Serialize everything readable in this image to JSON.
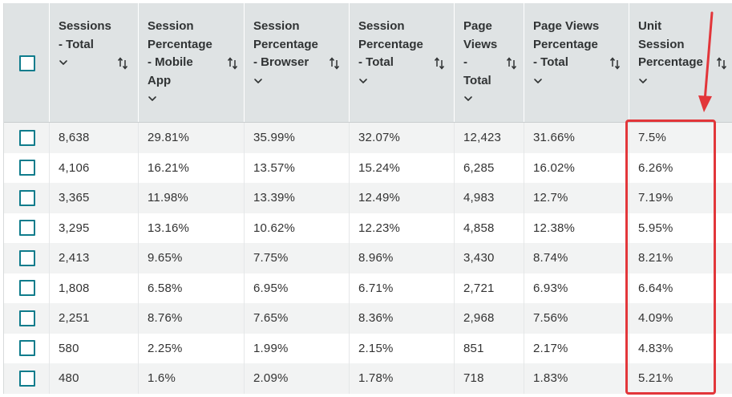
{
  "table": {
    "columns": [
      {
        "label": "",
        "type": "checkbox"
      },
      {
        "label": "Sessions\n- Total",
        "sortable": true
      },
      {
        "label": "Session\nPercentage\n- Mobile\nApp",
        "sortable": true
      },
      {
        "label": "Session\nPercentage\n- Browser",
        "sortable": true
      },
      {
        "label": "Session\nPercentage\n- Total",
        "sortable": true
      },
      {
        "label": "Page\nViews\n-\nTotal",
        "sortable": true
      },
      {
        "label": "Page Views\nPercentage\n- Total",
        "sortable": true
      },
      {
        "label": "Unit\nSession\nPercentage",
        "sortable": true
      }
    ],
    "rows": [
      [
        "8,638",
        "29.81%",
        "35.99%",
        "32.07%",
        "12,423",
        "31.66%",
        "7.5%"
      ],
      [
        "4,106",
        "16.21%",
        "13.57%",
        "15.24%",
        "6,285",
        "16.02%",
        "6.26%"
      ],
      [
        "3,365",
        "11.98%",
        "13.39%",
        "12.49%",
        "4,983",
        "12.7%",
        "7.19%"
      ],
      [
        "3,295",
        "13.16%",
        "10.62%",
        "12.23%",
        "4,858",
        "12.38%",
        "5.95%"
      ],
      [
        "2,413",
        "9.65%",
        "7.75%",
        "8.96%",
        "3,430",
        "8.74%",
        "8.21%"
      ],
      [
        "1,808",
        "6.58%",
        "6.95%",
        "6.71%",
        "2,721",
        "6.93%",
        "6.64%"
      ],
      [
        "2,251",
        "8.76%",
        "7.65%",
        "8.36%",
        "2,968",
        "7.56%",
        "4.09%"
      ],
      [
        "580",
        "2.25%",
        "1.99%",
        "2.15%",
        "851",
        "2.17%",
        "4.83%"
      ],
      [
        "480",
        "1.6%",
        "2.09%",
        "1.78%",
        "718",
        "1.83%",
        "5.21%"
      ]
    ]
  },
  "icons": {
    "sort": "sort-arrows-icon",
    "chevron": "chevron-down-icon"
  },
  "colors": {
    "header_bg": "#dfe3e4",
    "checkbox_border": "#0f7c8c",
    "highlight": "#e2363a",
    "row_alt": "#f2f3f3"
  }
}
